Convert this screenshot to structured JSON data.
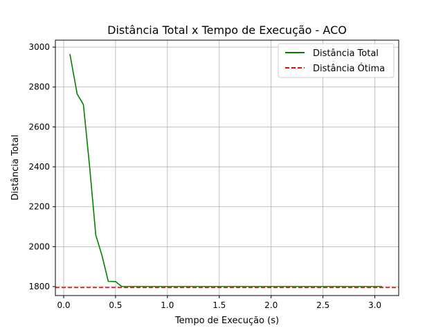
{
  "chart_data": {
    "type": "line",
    "title": "Distância Total x Tempo de Execução - ACO",
    "xlabel": "Tempo de Execução (s)",
    "ylabel": "Distância Total",
    "xlim": [
      -0.08,
      3.23
    ],
    "ylim": [
      1755,
      3035
    ],
    "xticks": [
      0.0,
      0.5,
      1.0,
      1.5,
      2.0,
      2.5,
      3.0
    ],
    "xtick_labels": [
      "0.0",
      "0.5",
      "1.0",
      "1.5",
      "2.0",
      "2.5",
      "3.0"
    ],
    "yticks": [
      1800,
      2000,
      2200,
      2400,
      2600,
      2800,
      3000
    ],
    "ytick_labels": [
      "1800",
      "2000",
      "2200",
      "2400",
      "2600",
      "2800",
      "3000"
    ],
    "grid": true,
    "legend_position": "upper right",
    "series": [
      {
        "name": "Distância Total",
        "color": "#008000",
        "style": "solid",
        "x": [
          0.06,
          0.13,
          0.19,
          0.25,
          0.31,
          0.37,
          0.43,
          0.5,
          0.56,
          0.62,
          0.75,
          1.0,
          1.5,
          2.0,
          2.5,
          3.07
        ],
        "y": [
          2965,
          2765,
          2712,
          2400,
          2058,
          1955,
          1826,
          1825,
          1800,
          1800,
          1800,
          1800,
          1800,
          1800,
          1800,
          1800
        ]
      },
      {
        "name": "Distância Ótima",
        "color": "#ff0000",
        "style": "dashed",
        "type": "hline",
        "y": 1795
      }
    ]
  }
}
